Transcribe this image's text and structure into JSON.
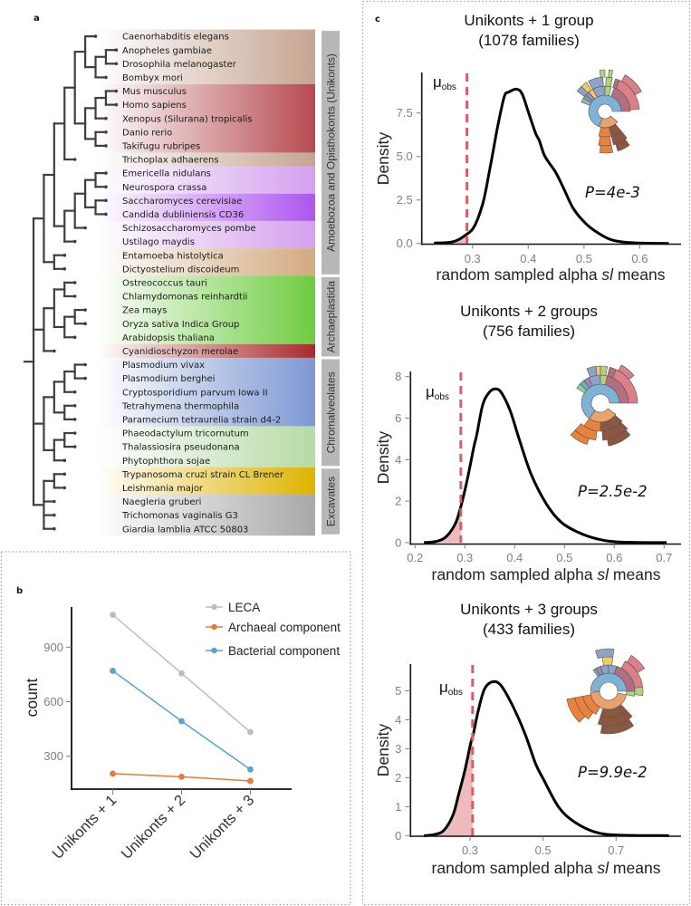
{
  "panel_labels": {
    "a": "a",
    "b": "b",
    "c": "c"
  },
  "panel_a": {
    "species": [
      "Caenorhabditis elegans",
      "Anopheles gambiae",
      "Drosophila melanogaster",
      "Bombyx mori",
      "Mus musculus",
      "Homo sapiens",
      "Xenopus (Silurana) tropicalis",
      "Danio rerio",
      "Takifugu rubripes",
      "Trichoplax adhaerens",
      "Emericella nidulans",
      "Neurospora crassa",
      "Saccharomyces cerevisiae",
      "Candida dubliniensis CD36",
      "Schizosaccharomyces pombe",
      "Ustilago maydis",
      "Entamoeba histolytica",
      "Dictyostelium discoideum",
      "Ostreococcus tauri",
      "Chlamydomonas reinhardtii",
      "Zea mays",
      "Oryza sativa Indica Group",
      "Arabidopsis thaliana",
      "Cyanidioschyzon merolae",
      "Plasmodium vivax",
      "Plasmodium berghei",
      "Cryptosporidium parvum Iowa II",
      "Tetrahymena thermophila",
      "Paramecium tetraurelia strain d4-2",
      "Phaeodactylum tricornutum",
      "Thalassiosira pseudonana",
      "Phytophthora sojae",
      "Trypanosoma cruzi strain CL Brener",
      "Leishmania major",
      "Naegleria gruberi",
      "Trichomonas vaginalis G3",
      "Giardia lamblia ATCC 50803"
    ],
    "bands": [
      {
        "rows": [
          1,
          4
        ],
        "color": "#c5a590"
      },
      {
        "rows": [
          5,
          9
        ],
        "color": "#b64a4f"
      },
      {
        "rows": [
          10,
          10
        ],
        "color": "#c5a590"
      },
      {
        "rows": [
          11,
          12
        ],
        "color": "#d5a0ef"
      },
      {
        "rows": [
          13,
          14
        ],
        "color": "#ae55ee"
      },
      {
        "rows": [
          15,
          16
        ],
        "color": "#d5a0ef"
      },
      {
        "rows": [
          17,
          18
        ],
        "color": "#d3aa80"
      },
      {
        "rows": [
          19,
          23
        ],
        "color": "#6ecc40"
      },
      {
        "rows": [
          24,
          24
        ],
        "color": "#a92a2c"
      },
      {
        "rows": [
          25,
          29
        ],
        "color": "#7d98d3"
      },
      {
        "rows": [
          30,
          32
        ],
        "color": "#b6dba6"
      },
      {
        "rows": [
          33,
          34
        ],
        "color": "#dfb300"
      },
      {
        "rows": [
          35,
          37
        ],
        "color": "#a8a8a8"
      }
    ],
    "groups": [
      {
        "label": "Amoebozoa and Opisthokonts (Unikonts)",
        "rows": [
          1,
          18
        ]
      },
      {
        "label": "Archaeplastida",
        "rows": [
          19,
          24
        ]
      },
      {
        "label": "Chromalveolates",
        "rows": [
          25,
          32
        ]
      },
      {
        "label": "Excavates",
        "rows": [
          33,
          37
        ]
      }
    ],
    "tree": [
      [
        [
          [
            [
              [
                1,
                [
                  [
                    2,
                    3
                  ],
                  4
                ]
              ],
              [
                [
                  [
                    5,
                    6
                  ],
                  7
                ],
                [
                  8,
                  9
                ]
              ]
            ],
            10
          ],
          [
            [
              [
                [
                  11,
                  12
                ],
                [
                  13,
                  14
                ]
              ],
              15
            ],
            16
          ]
        ],
        [
          17,
          18
        ]
      ],
      [
        [
          [
            19,
            20
          ],
          [
            [
              21,
              22
            ],
            23
          ]
        ],
        24
      ],
      [
        [
          [
            [
              25,
              26
            ],
            27
          ],
          [
            28,
            29
          ]
        ],
        [
          [
            30,
            31
          ],
          32
        ]
      ],
      [
        [
          33,
          34
        ],
        35,
        36,
        37
      ]
    ]
  },
  "sunburst_palette": {
    "blue": "#7fb3d5",
    "lightorange": "#e9a26c",
    "mauve": "#b1707f",
    "pink": "#db7f88",
    "orange": "#e8823c",
    "brown": "#8b5743",
    "green": "#b4d07e",
    "yellow": "#f2cb66",
    "slate": "#8fa2c8",
    "purple": "#a585b5",
    "teal": "#66b5b5",
    "greygreen": "#9fb0b5",
    "lightgreen": "#8fd1a0"
  },
  "chart_data": [
    {
      "panel": "b",
      "type": "line",
      "title": "",
      "xlabel": "",
      "ylabel": "count",
      "categories": [
        "Unikonts + 1",
        "Unikonts + 2",
        "Unikonts + 3"
      ],
      "series": [
        {
          "name": "LECA",
          "color": "#bdbdbd",
          "values": [
            1078,
            756,
            433
          ]
        },
        {
          "name": "Archaeal component",
          "color": "#e07b39",
          "values": [
            204,
            187,
            164
          ]
        },
        {
          "name": "Bacterial component",
          "color": "#5ba3cd",
          "values": [
            770,
            493,
            227
          ]
        }
      ],
      "yticks": [
        300,
        600,
        900
      ],
      "ylim": [
        119,
        1121
      ],
      "grid": false,
      "legend": "top-right"
    },
    {
      "panel": "c",
      "type": "area",
      "title": "Unikonts + 1 group",
      "subtitle": "(1078 families)",
      "xlabel_parts": [
        "random sampled alpha ",
        "sl",
        " means"
      ],
      "ylabel": "Density",
      "xticks": [
        0.3,
        0.4,
        0.5,
        0.6
      ],
      "xtick_labels": [
        "0.3",
        "0.4",
        "0.5",
        "0.6"
      ],
      "yticks": [
        0,
        2.5,
        5,
        7.5
      ],
      "ytick_labels": [
        "0.0",
        "2.5",
        "5.0",
        "7.5"
      ],
      "xlim": [
        0.209,
        0.674
      ],
      "ylim": [
        -0.04,
        9.83
      ],
      "observed_mean": 0.29,
      "mu": {
        "symbol": "μ",
        "subscript": "obs"
      },
      "p_label": "P=4e-3",
      "curve": {
        "x": [
          0.231,
          0.265,
          0.286,
          0.303,
          0.319,
          0.33,
          0.337,
          0.345,
          0.357,
          0.365,
          0.379,
          0.389,
          0.4,
          0.413,
          0.42,
          0.43,
          0.449,
          0.465,
          0.481,
          0.503,
          0.524,
          0.551,
          0.589,
          0.652
        ],
        "y": [
          0.02,
          0.1,
          0.45,
          0.97,
          2.36,
          4.1,
          5.3,
          6.7,
          8.44,
          8.7,
          8.87,
          8.6,
          7.57,
          6.35,
          5.9,
          5.0,
          4.1,
          3.06,
          2.0,
          1.15,
          0.63,
          0.19,
          0.04,
          0.0
        ]
      },
      "sunburst": [
        [
          [
            0.56,
            1.25,
            "blue"
          ],
          [
            0.36,
            0.56,
            "lightorange"
          ]
        ],
        [
          [
            0.06,
            0.25,
            "mauve"
          ],
          [
            -0.08,
            0.0,
            "slate"
          ],
          [
            0.0,
            0.04,
            "green"
          ],
          [
            -0.11,
            -0.08,
            "yellow"
          ],
          [
            -0.14,
            -0.11,
            "purple"
          ],
          [
            -0.16,
            -0.14,
            "teal"
          ],
          [
            -0.19,
            -0.16,
            "greygreen"
          ],
          [
            0.39,
            0.46,
            "brown"
          ],
          [
            0.46,
            0.54,
            "orange"
          ]
        ],
        [
          [
            0.07,
            0.24,
            "pink"
          ],
          [
            0.05,
            0.07,
            "mauve"
          ],
          [
            -0.08,
            -0.01,
            "slate"
          ],
          [
            0.005,
            0.035,
            "green"
          ],
          [
            -0.12,
            -0.09,
            "yellow"
          ],
          [
            -0.15,
            -0.12,
            "slate"
          ],
          [
            0.39,
            0.46,
            "brown"
          ],
          [
            0.47,
            0.53,
            "orange"
          ]
        ],
        [
          [
            0.08,
            0.17,
            "pink"
          ],
          [
            -0.02,
            0.0,
            "green"
          ],
          [
            0.015,
            0.03,
            "green"
          ],
          [
            0.4,
            0.45,
            "brown"
          ],
          [
            0.47,
            0.52,
            "orange"
          ]
        ]
      ]
    },
    {
      "panel": "c",
      "type": "area",
      "title": "Unikonts + 2 groups",
      "subtitle": "(756 families)",
      "xlabel_parts": [
        "random sampled alpha ",
        "sl",
        " means"
      ],
      "ylabel": "Density",
      "xticks": [
        0.2,
        0.3,
        0.4,
        0.5,
        0.6,
        0.7
      ],
      "xtick_labels": [
        "0.2",
        "0.3",
        "0.4",
        "0.5",
        "0.6",
        "0.7"
      ],
      "yticks": [
        0,
        2,
        4,
        6,
        8
      ],
      "ytick_labels": [
        "0",
        "2",
        "4",
        "6",
        "8"
      ],
      "xlim": [
        0.191,
        0.734
      ],
      "ylim": [
        -0.07,
        8.25
      ],
      "observed_mean": 0.292,
      "mu": {
        "symbol": "μ",
        "subscript": "obs"
      },
      "p_label": "P=2.5e-2",
      "curve": {
        "x": [
          0.218,
          0.245,
          0.264,
          0.282,
          0.294,
          0.306,
          0.318,
          0.324,
          0.336,
          0.349,
          0.361,
          0.373,
          0.391,
          0.409,
          0.433,
          0.464,
          0.494,
          0.53,
          0.567,
          0.61,
          0.705
        ],
        "y": [
          0.0,
          0.07,
          0.32,
          0.97,
          1.92,
          3.16,
          4.6,
          5.2,
          6.65,
          7.24,
          7.41,
          7.24,
          6.36,
          5.0,
          3.3,
          1.85,
          0.97,
          0.47,
          0.17,
          0.03,
          0.0
        ]
      },
      "sunburst": [
        [
          [
            0.6,
            1.25,
            "blue"
          ],
          [
            0.35,
            0.6,
            "lightorange"
          ]
        ],
        [
          [
            0.04,
            0.25,
            "mauve"
          ],
          [
            -0.07,
            0.0,
            "slate"
          ],
          [
            0.0,
            0.04,
            "green"
          ],
          [
            -0.1,
            -0.07,
            "purple"
          ],
          [
            -0.13,
            -0.1,
            "teal"
          ],
          [
            -0.16,
            -0.13,
            "lightgreen"
          ],
          [
            0.36,
            0.5,
            "brown"
          ],
          [
            0.5,
            0.6,
            "orange"
          ]
        ],
        [
          [
            0.07,
            0.25,
            "pink"
          ],
          [
            0.04,
            0.07,
            "mauve"
          ],
          [
            -0.06,
            -0.02,
            "slate"
          ],
          [
            -0.02,
            0.0,
            "yellow"
          ],
          [
            0.0,
            0.03,
            "green"
          ],
          [
            0.37,
            0.49,
            "brown"
          ],
          [
            0.52,
            0.62,
            "orange"
          ]
        ],
        [
          [
            0.08,
            0.14,
            "pink"
          ],
          [
            0.38,
            0.47,
            "brown"
          ],
          [
            0.55,
            0.62,
            "orange"
          ]
        ]
      ]
    },
    {
      "panel": "c",
      "type": "area",
      "title": "Unikonts + 3 groups",
      "subtitle": "(433 families)",
      "xlabel_parts": [
        "random sampled alpha ",
        "sl",
        " means"
      ],
      "ylabel": "Density",
      "xticks": [
        0.3,
        0.5,
        0.7
      ],
      "xtick_labels": [
        "0.3",
        "0.5",
        "0.7"
      ],
      "yticks": [
        0,
        1,
        2,
        3,
        4,
        5
      ],
      "ytick_labels": [
        "0",
        "1",
        "2",
        "3",
        "4",
        "5"
      ],
      "xlim": [
        0.137,
        0.878
      ],
      "ylim": [
        -0.02,
        5.92
      ],
      "observed_mean": 0.307,
      "mu": {
        "symbol": "μ",
        "subscript": "obs"
      },
      "p_label": "P=9.9e-2",
      "curve": {
        "x": [
          0.174,
          0.203,
          0.228,
          0.253,
          0.269,
          0.286,
          0.302,
          0.309,
          0.323,
          0.34,
          0.362,
          0.385,
          0.418,
          0.451,
          0.48,
          0.501,
          0.542,
          0.584,
          0.642,
          0.708,
          0.845
        ],
        "y": [
          0.0,
          0.04,
          0.18,
          0.7,
          1.43,
          2.26,
          3.2,
          3.5,
          4.34,
          5.07,
          5.31,
          5.18,
          4.45,
          3.5,
          2.47,
          1.95,
          1.0,
          0.49,
          0.125,
          0.02,
          0.0
        ]
      },
      "sunburst": [
        [
          [
            0.75,
            1.25,
            "blue"
          ],
          [
            0.28,
            0.74,
            "lightorange"
          ]
        ],
        [
          [
            0.05,
            0.25,
            "mauve"
          ],
          [
            0.25,
            0.28,
            "green"
          ],
          [
            -0.05,
            0.0,
            "slate"
          ],
          [
            0.0,
            0.05,
            "slate"
          ],
          [
            -0.08,
            -0.05,
            "purple"
          ],
          [
            -0.1,
            -0.08,
            "teal"
          ],
          [
            0.38,
            0.55,
            "brown"
          ],
          [
            0.58,
            0.72,
            "orange"
          ]
        ],
        [
          [
            0.08,
            0.23,
            "pink"
          ],
          [
            0.23,
            0.27,
            "green"
          ],
          [
            -0.03,
            0.02,
            "yellow"
          ],
          [
            0.38,
            0.55,
            "brown"
          ],
          [
            0.6,
            0.72,
            "orange"
          ]
        ],
        [
          [
            0.09,
            0.16,
            "pink"
          ],
          [
            -0.05,
            0.02,
            "slate"
          ],
          [
            0.4,
            0.53,
            "brown"
          ],
          [
            0.62,
            0.72,
            "orange"
          ]
        ]
      ]
    }
  ]
}
